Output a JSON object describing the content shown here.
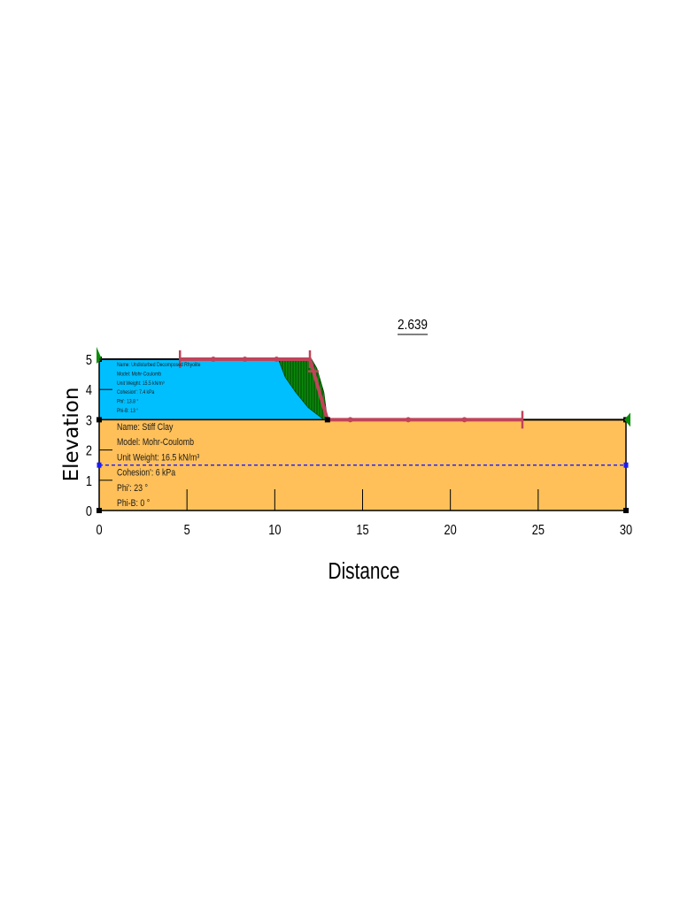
{
  "factor_of_safety": "2.639",
  "axes": {
    "x_title": "Distance",
    "y_title": "Elevation",
    "x_ticks": [
      0,
      5,
      10,
      15,
      20,
      25,
      30
    ],
    "y_ticks": [
      0,
      1,
      2,
      3,
      4,
      5
    ],
    "x_range": [
      0,
      30
    ],
    "y_range": [
      0,
      5
    ]
  },
  "materials": [
    {
      "lines": [
        "Name: Undisturbed Decomposed Rhyolite",
        "Model: Mohr-Coulomb",
        "Unit Weight: 15.5 kN/m³",
        "Cohesion': 7.4 kPa",
        "Phi': 13.8 °",
        "Phi-B: 13 °"
      ],
      "color": "#00bfff"
    },
    {
      "lines": [
        "Name: Stiff Clay",
        "Model: Mohr-Coulomb",
        "Unit Weight: 16.5 kN/m³",
        "Cohesion': 6 kPa",
        "Phi': 23 °",
        "Phi-B: 0 °"
      ],
      "color": "#ffc05a"
    }
  ],
  "colors": {
    "slip_surface": "#0a8c0a",
    "slip_hatch": "#003300",
    "entry_exit": "#c0445a",
    "water_table": "#1a1aff",
    "boundary": "#000000"
  },
  "chart_data": {
    "type": "diagram",
    "x": "Distance",
    "y": "Elevation",
    "regions": [
      {
        "name": "Undisturbed Decomposed Rhyolite",
        "points": [
          [
            0,
            5
          ],
          [
            12,
            5
          ],
          [
            13,
            3
          ],
          [
            0,
            3
          ]
        ]
      },
      {
        "name": "Stiff Clay",
        "points": [
          [
            0,
            3
          ],
          [
            13,
            3
          ],
          [
            30,
            3
          ],
          [
            30,
            0
          ],
          [
            0,
            0
          ]
        ]
      }
    ],
    "ground_surface": [
      [
        0,
        5
      ],
      [
        12,
        5
      ],
      [
        13,
        3
      ],
      [
        30,
        3
      ]
    ],
    "water_table": [
      [
        0,
        1.5
      ],
      [
        30,
        1.5
      ]
    ],
    "entry_range": [
      4.6,
      12.2
    ],
    "exit_range": [
      13,
      24.1
    ],
    "slip_surface": [
      [
        10.2,
        5
      ],
      [
        10.6,
        4.4
      ],
      [
        11.2,
        3.9
      ],
      [
        11.9,
        3.4
      ],
      [
        12.8,
        3.0
      ],
      [
        13,
        3
      ],
      [
        12.8,
        3.9
      ],
      [
        12.4,
        4.7
      ],
      [
        12.1,
        5
      ]
    ],
    "factor_of_safety": 2.639
  }
}
